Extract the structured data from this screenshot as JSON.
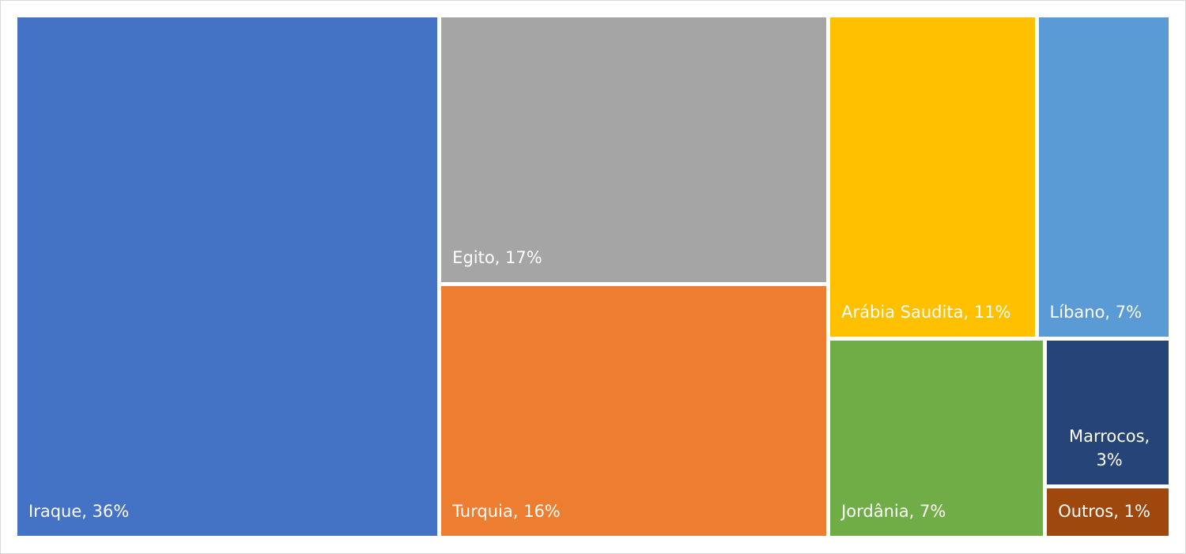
{
  "chart_data": {
    "type": "treemap",
    "value_labels": [
      "Iraque, 36%",
      "Egito, 17%",
      "Turquia, 16%",
      "Arábia Saudita, 11%",
      "Líbano, 7%",
      "Jordânia, 7%",
      "Marrocos, 3%",
      "Outros, 1%"
    ],
    "values": [
      36,
      17,
      16,
      11,
      7,
      7,
      3,
      1
    ],
    "colors": [
      "#4472c4",
      "#a5a5a5",
      "#ed7d31",
      "#ffc000",
      "#5b9bd5",
      "#70ad47",
      "#264478",
      "#9e480e"
    ]
  }
}
